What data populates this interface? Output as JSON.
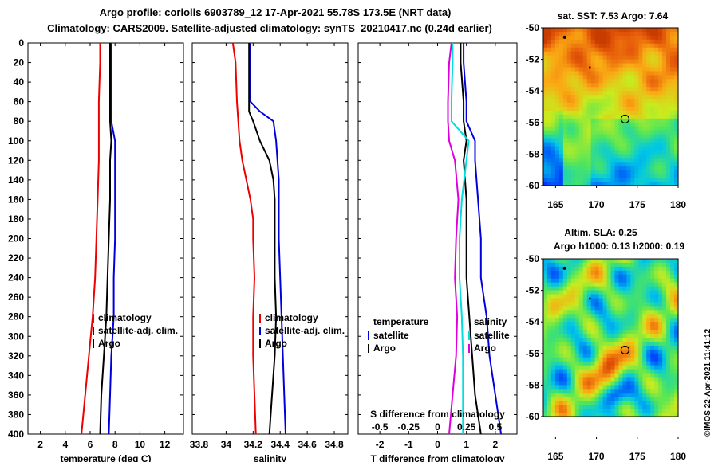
{
  "title": {
    "line1": "Argo profile: coriolis 6903789_12 17-Apr-2021 55.78S 173.5E (NRT data)",
    "line2": "Climatology: CARS2009. Satellite-adjusted climatology: synTS_20210417.nc (0.24d earlier)"
  },
  "credit": "©IMOS 22-Apr-2021 11:41:12",
  "colors": {
    "climatology": "#ee0000",
    "satellite": "#0000dd",
    "argo": "#000000",
    "s_satellite": "#00dddd",
    "s_argo": "#dd00dd"
  },
  "chart_data": [
    {
      "type": "line",
      "name": "temperature-profile",
      "xlabel": "temperature (deg C)",
      "ylabel": "",
      "xlim": [
        1,
        13.5
      ],
      "ylim": [
        400,
        0
      ],
      "xticks": [
        2,
        4,
        6,
        8,
        10,
        12
      ],
      "yticks": [
        0,
        20,
        40,
        60,
        80,
        100,
        120,
        140,
        160,
        180,
        200,
        220,
        240,
        260,
        280,
        300,
        320,
        340,
        360,
        380,
        400
      ],
      "legend_position": "lower-center",
      "legend": [
        "climatology",
        "satellite-adj. clim.",
        "Argo"
      ],
      "series": [
        {
          "name": "climatology",
          "color": "#ee0000",
          "depth": [
            0,
            20,
            60,
            80,
            120,
            160,
            200,
            240,
            280,
            320,
            360,
            400
          ],
          "values": [
            6.8,
            6.8,
            6.7,
            6.7,
            6.7,
            6.6,
            6.5,
            6.4,
            6.2,
            5.9,
            5.6,
            5.3
          ]
        },
        {
          "name": "satellite-adj. clim.",
          "color": "#0000dd",
          "depth": [
            0,
            20,
            60,
            80,
            100,
            120,
            160,
            200,
            240,
            280,
            320,
            360,
            400
          ],
          "values": [
            7.7,
            7.7,
            7.7,
            7.7,
            8.0,
            8.0,
            8.0,
            8.0,
            7.9,
            7.9,
            7.7,
            7.6,
            7.5
          ]
        },
        {
          "name": "Argo",
          "color": "#000000",
          "depth": [
            0,
            20,
            60,
            80,
            100,
            120,
            160,
            200,
            240,
            280,
            320,
            360,
            400
          ],
          "values": [
            7.6,
            7.6,
            7.6,
            7.6,
            7.7,
            7.6,
            7.6,
            7.5,
            7.4,
            7.3,
            7.1,
            6.9,
            6.8
          ]
        }
      ]
    },
    {
      "type": "line",
      "name": "salinity-profile",
      "xlabel": "salinity",
      "ylabel": "",
      "xlim": [
        33.75,
        34.9
      ],
      "ylim": [
        400,
        0
      ],
      "xticks": [
        33.8,
        34,
        34.2,
        34.4,
        34.6,
        34.8
      ],
      "legend_position": "lower-center",
      "legend": [
        "climatology",
        "satellite-adj. clim.",
        "Argo"
      ],
      "series": [
        {
          "name": "climatology",
          "color": "#ee0000",
          "depth": [
            0,
            20,
            60,
            100,
            120,
            140,
            160,
            180,
            200,
            240,
            280,
            320,
            360,
            400
          ],
          "values": [
            34.05,
            34.07,
            34.08,
            34.1,
            34.12,
            34.15,
            34.18,
            34.2,
            34.2,
            34.21,
            34.2,
            34.2,
            34.21,
            34.22
          ]
        },
        {
          "name": "satellite-adj. clim.",
          "color": "#0000dd",
          "depth": [
            0,
            20,
            60,
            70,
            80,
            100,
            120,
            140,
            160,
            200,
            240,
            280,
            320,
            360,
            400
          ],
          "values": [
            34.18,
            34.18,
            34.18,
            34.25,
            34.35,
            34.37,
            34.38,
            34.39,
            34.39,
            34.39,
            34.4,
            34.41,
            34.42,
            34.43,
            34.44
          ]
        },
        {
          "name": "Argo",
          "color": "#000000",
          "depth": [
            0,
            20,
            60,
            70,
            80,
            100,
            120,
            140,
            160,
            200,
            240,
            280,
            320,
            360,
            400
          ],
          "values": [
            34.17,
            34.17,
            34.17,
            34.17,
            34.2,
            34.25,
            34.32,
            34.35,
            34.36,
            34.36,
            34.36,
            34.37,
            34.36,
            34.34,
            34.32
          ]
        }
      ]
    },
    {
      "type": "line",
      "name": "difference-profile",
      "xlabel": "T difference from climatology",
      "top_xlabel": "S difference from climatology",
      "xlim": [
        -2.75,
        2.75
      ],
      "ylim": [
        400,
        0
      ],
      "xticks": [
        -2,
        -1,
        0,
        1,
        2
      ],
      "top_xticks": [
        -0.5,
        -0.25,
        0,
        0.25,
        0.5
      ],
      "legend_position": "lower-center",
      "legend_temperature": {
        "heading": "temperature",
        "items": [
          "satellite",
          "Argo"
        ]
      },
      "legend_salinity": {
        "heading": "salinity",
        "items": [
          "satellite",
          "Argo"
        ]
      },
      "series": [
        {
          "name": "T satellite",
          "color": "#0000dd",
          "depth": [
            0,
            20,
            60,
            80,
            100,
            120,
            160,
            200,
            240,
            280,
            320,
            360,
            400
          ],
          "values": [
            0.9,
            0.9,
            1.0,
            1.0,
            1.3,
            1.3,
            1.4,
            1.5,
            1.5,
            1.7,
            1.8,
            2.0,
            2.2
          ]
        },
        {
          "name": "T Argo",
          "color": "#000000",
          "depth": [
            0,
            20,
            60,
            80,
            100,
            120,
            160,
            200,
            240,
            280,
            320,
            360,
            400
          ],
          "values": [
            0.8,
            0.8,
            0.9,
            0.9,
            1.0,
            0.9,
            1.0,
            1.0,
            1.0,
            1.1,
            1.2,
            1.3,
            1.5
          ]
        },
        {
          "name": "S satellite",
          "color": "#00dddd",
          "depth": [
            0,
            20,
            60,
            80,
            100,
            120,
            160,
            200,
            240,
            280,
            320,
            360,
            400
          ],
          "values": [
            0.13,
            0.13,
            0.12,
            0.12,
            0.27,
            0.25,
            0.21,
            0.19,
            0.19,
            0.21,
            0.22,
            0.22,
            0.22
          ]
        },
        {
          "name": "S Argo",
          "color": "#dd00dd",
          "depth": [
            0,
            20,
            60,
            80,
            100,
            120,
            160,
            200,
            240,
            280,
            320,
            360,
            400
          ],
          "values": [
            0.12,
            0.1,
            0.09,
            0.09,
            0.1,
            0.15,
            0.18,
            0.16,
            0.15,
            0.17,
            0.16,
            0.13,
            0.1
          ]
        }
      ]
    },
    {
      "type": "heatmap",
      "name": "sst-map",
      "title": "sat. SST: 7.53 Argo: 7.64",
      "xticks": [
        165,
        170,
        175,
        180
      ],
      "yticks": [
        -50,
        -52,
        -54,
        -56,
        -58,
        -60
      ],
      "xlim": [
        163.5,
        180
      ],
      "ylim": [
        -60,
        -50
      ],
      "argo_position": {
        "lon": 173.5,
        "lat": -55.78
      }
    },
    {
      "type": "heatmap",
      "name": "sla-map",
      "title_line1": "Altim. SLA: 0.25",
      "title_line2": "Argo h1000: 0.13 h2000: 0.19",
      "xticks": [
        165,
        170,
        175,
        180
      ],
      "yticks": [
        -50,
        -52,
        -54,
        -56,
        -58,
        -60
      ],
      "xlim": [
        163.5,
        180
      ],
      "ylim": [
        -60,
        -50
      ],
      "argo_position": {
        "lon": 173.5,
        "lat": -55.78
      }
    }
  ]
}
